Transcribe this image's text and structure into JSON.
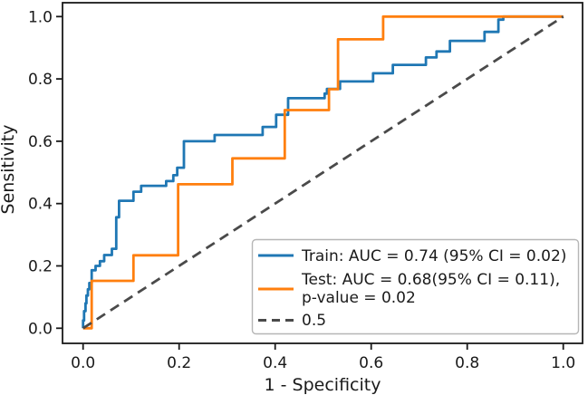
{
  "figure_type": "roc-curve-plot",
  "legend": {
    "entries": [
      {
        "id": "train",
        "label_lines": [
          "Train: AUC = 0.74 (95% CI = 0.02)"
        ],
        "color": "#1f77b4",
        "dashed": false
      },
      {
        "id": "test",
        "label_lines": [
          "Test: AUC = 0.68(95% CI = 0.11),",
          "p-value = 0.02"
        ],
        "color": "#ff7f0e",
        "dashed": false
      },
      {
        "id": "chance",
        "label_lines": [
          "0.5"
        ],
        "color": "#4a4a4a",
        "dashed": true
      }
    ]
  },
  "chart_data": {
    "type": "line",
    "title": "",
    "xlabel": "1 - Specificity",
    "ylabel": "Sensitivity",
    "xlim": [
      0,
      1
    ],
    "ylim": [
      0,
      1
    ],
    "grid": false,
    "legend_position": "lower right",
    "x_ticks": [
      0.0,
      0.2,
      0.4,
      0.6,
      0.8,
      1.0
    ],
    "y_ticks": [
      0.0,
      0.2,
      0.4,
      0.6,
      0.8,
      1.0
    ],
    "x_tick_labels": [
      "0.0",
      "0.2",
      "0.4",
      "0.6",
      "0.8",
      "1.0"
    ],
    "y_tick_labels": [
      "0.0",
      "0.2",
      "0.4",
      "0.6",
      "0.8",
      "1.0"
    ],
    "series": [
      {
        "id": "train",
        "name": "Train: AUC = 0.74 (95% CI = 0.02)",
        "color": "#1f77b4",
        "style": "solid",
        "auc": 0.74,
        "ci_95": 0.02,
        "points": [
          [
            0,
            0
          ],
          [
            0,
            0.025
          ],
          [
            0.002,
            0.025
          ],
          [
            0.002,
            0.055
          ],
          [
            0.005,
            0.055
          ],
          [
            0.005,
            0.08
          ],
          [
            0.007,
            0.08
          ],
          [
            0.007,
            0.105
          ],
          [
            0.01,
            0.105
          ],
          [
            0.01,
            0.125
          ],
          [
            0.013,
            0.125
          ],
          [
            0.013,
            0.145
          ],
          [
            0.018,
            0.145
          ],
          [
            0.018,
            0.186
          ],
          [
            0.026,
            0.186
          ],
          [
            0.026,
            0.2
          ],
          [
            0.035,
            0.2
          ],
          [
            0.035,
            0.215
          ],
          [
            0.044,
            0.215
          ],
          [
            0.044,
            0.235
          ],
          [
            0.06,
            0.235
          ],
          [
            0.06,
            0.255
          ],
          [
            0.069,
            0.255
          ],
          [
            0.069,
            0.356
          ],
          [
            0.075,
            0.356
          ],
          [
            0.075,
            0.409
          ],
          [
            0.105,
            0.409
          ],
          [
            0.105,
            0.438
          ],
          [
            0.121,
            0.438
          ],
          [
            0.121,
            0.457
          ],
          [
            0.173,
            0.457
          ],
          [
            0.173,
            0.472
          ],
          [
            0.188,
            0.472
          ],
          [
            0.188,
            0.491
          ],
          [
            0.196,
            0.491
          ],
          [
            0.196,
            0.515
          ],
          [
            0.21,
            0.515
          ],
          [
            0.21,
            0.6
          ],
          [
            0.274,
            0.6
          ],
          [
            0.274,
            0.62
          ],
          [
            0.374,
            0.62
          ],
          [
            0.374,
            0.646
          ],
          [
            0.402,
            0.646
          ],
          [
            0.402,
            0.685
          ],
          [
            0.427,
            0.685
          ],
          [
            0.427,
            0.738
          ],
          [
            0.503,
            0.738
          ],
          [
            0.503,
            0.753
          ],
          [
            0.508,
            0.753
          ],
          [
            0.508,
            0.768
          ],
          [
            0.535,
            0.768
          ],
          [
            0.535,
            0.792
          ],
          [
            0.604,
            0.792
          ],
          [
            0.604,
            0.818
          ],
          [
            0.645,
            0.818
          ],
          [
            0.645,
            0.845
          ],
          [
            0.714,
            0.845
          ],
          [
            0.714,
            0.869
          ],
          [
            0.736,
            0.869
          ],
          [
            0.736,
            0.888
          ],
          [
            0.764,
            0.888
          ],
          [
            0.764,
            0.922
          ],
          [
            0.836,
            0.922
          ],
          [
            0.836,
            0.951
          ],
          [
            0.865,
            0.951
          ],
          [
            0.865,
            0.99
          ],
          [
            0.875,
            0.99
          ],
          [
            0.875,
            1
          ],
          [
            1,
            1
          ]
        ]
      },
      {
        "id": "test",
        "name": "Test: AUC = 0.68(95% CI = 0.11), p-value = 0.02",
        "color": "#ff7f0e",
        "style": "solid",
        "auc": 0.68,
        "ci_95": 0.11,
        "p_value": 0.02,
        "points": [
          [
            0,
            0
          ],
          [
            0.018,
            0
          ],
          [
            0.018,
            0.152
          ],
          [
            0.105,
            0.152
          ],
          [
            0.105,
            0.234
          ],
          [
            0.198,
            0.234
          ],
          [
            0.198,
            0.462
          ],
          [
            0.311,
            0.462
          ],
          [
            0.311,
            0.545
          ],
          [
            0.42,
            0.545
          ],
          [
            0.42,
            0.7
          ],
          [
            0.512,
            0.7
          ],
          [
            0.512,
            0.767
          ],
          [
            0.531,
            0.767
          ],
          [
            0.531,
            0.927
          ],
          [
            0.625,
            0.927
          ],
          [
            0.625,
            1
          ],
          [
            1,
            1
          ]
        ]
      },
      {
        "id": "chance",
        "name": "0.5",
        "color": "#4a4a4a",
        "style": "dashed",
        "points": [
          [
            0,
            0
          ],
          [
            1,
            1
          ]
        ]
      }
    ]
  }
}
